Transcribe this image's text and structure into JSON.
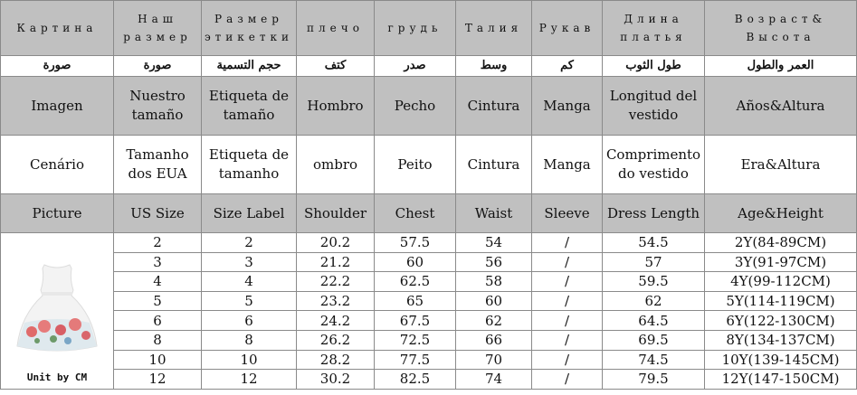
{
  "headers": {
    "ru": [
      "Картина",
      "Наш размер",
      "Размер этикетки",
      "плечо",
      "грудь",
      "Талия",
      "Рукав",
      "Длина платья",
      "Возраст& Высота"
    ],
    "ar": [
      "صورة",
      "صورة",
      "حجم التسمية",
      "كتف",
      "صدر",
      "وسط",
      "كم",
      "طول الثوب",
      "العمر والطول"
    ],
    "es": [
      "Imagen",
      "Nuestro tamaño",
      "Etiqueta de tamaño",
      "Hombro",
      "Pecho",
      "Cintura",
      "Manga",
      "Longitud del vestido",
      "Años&Altura"
    ],
    "pt": [
      "Cenário",
      "Tamanho dos EUA",
      "Etiqueta de tamanho",
      "ombro",
      "Peito",
      "Cintura",
      "Manga",
      "Comprimento do vestido",
      "Era&Altura"
    ],
    "en": [
      "Picture",
      "US Size",
      "Size Label",
      "Shoulder",
      "Chest",
      "Waist",
      "Sleeve",
      "Dress Length",
      "Age&Height"
    ]
  },
  "unit_note": "Unit by CM",
  "rows": [
    [
      "2",
      "2",
      "20.2",
      "57.5",
      "54",
      "/",
      "54.5",
      "2Y(84-89CM)"
    ],
    [
      "3",
      "3",
      "21.2",
      "60",
      "56",
      "/",
      "57",
      "3Y(91-97CM)"
    ],
    [
      "4",
      "4",
      "22.2",
      "62.5",
      "58",
      "/",
      "59.5",
      "4Y(99-112CM)"
    ],
    [
      "5",
      "5",
      "23.2",
      "65",
      "60",
      "/",
      "62",
      "5Y(114-119CM)"
    ],
    [
      "6",
      "6",
      "24.2",
      "67.5",
      "62",
      "/",
      "64.5",
      "6Y(122-130CM)"
    ],
    [
      "8",
      "8",
      "26.2",
      "72.5",
      "66",
      "/",
      "69.5",
      "8Y(134-137CM)"
    ],
    [
      "10",
      "10",
      "28.2",
      "77.5",
      "70",
      "/",
      "74.5",
      "10Y(139-145CM)"
    ],
    [
      "12",
      "12",
      "30.2",
      "82.5",
      "74",
      "/",
      "79.5",
      "12Y(147-150CM)"
    ]
  ],
  "colors": {
    "header_bg": "#c0c0c0",
    "border": "#8a8a8a"
  }
}
